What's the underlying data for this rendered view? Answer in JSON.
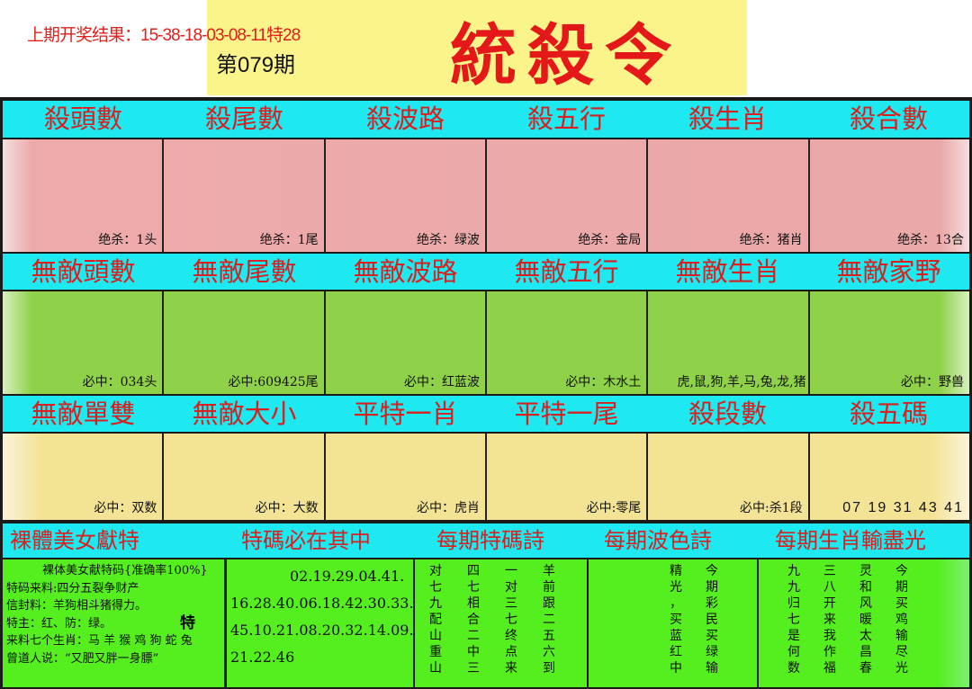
{
  "header": {
    "last_result": "上期开奖结果：15-38-18-03-08-11特28",
    "issue": "第079期",
    "title": "統殺令"
  },
  "colors": {
    "header_band": "#1ee8f0",
    "header_text": "#d82020",
    "kill_band": "#eeaaaa",
    "sure_band": "#8fd24a",
    "single_band": "#f3e394",
    "bottom_band": "#55ee1e",
    "title": "#e41818"
  },
  "row1": {
    "headers": [
      "殺頭數",
      "殺尾數",
      "殺波路",
      "殺五行",
      "殺生肖",
      "殺合數"
    ],
    "values": [
      "绝杀：1头",
      "绝杀：1尾",
      "绝杀：绿波",
      "绝杀：金局",
      "绝杀：猪肖",
      "绝杀：13合"
    ]
  },
  "row2": {
    "headers": [
      "無敵頭數",
      "無敵尾數",
      "無敵波路",
      "無敵五行",
      "無敵生肖",
      "無敵家野"
    ],
    "values": [
      "必中：034头",
      "必中:609425尾",
      "必中：红蓝波",
      "必中：木水土",
      "虎,鼠,狗,羊,马,兔,龙,猪",
      "必中：野兽"
    ]
  },
  "row3": {
    "headers": [
      "無敵單雙",
      "無敵大小",
      "平特一肖",
      "平特一尾",
      "殺段數",
      "殺五碼"
    ],
    "values": [
      "必中：双数",
      "必中：大数",
      "必中：虎肖",
      "必中:零尾",
      "必中:杀1段",
      "07 19 31 43 41"
    ]
  },
  "row4": {
    "headers": [
      "裸體美女獻特",
      "特碼必在其中",
      "每期特碼詩",
      "每期波色詩",
      "每期生肖輸盡光"
    ]
  },
  "bottom": {
    "info_lines": [
      "裸体美女献特码{准确率100%}",
      "特码来料:四分五裂争财产",
      "信封料：羊狗相斗猪得力。",
      "特主：红、防：绿。",
      "来料七个生肖：马 羊 猴 鸡 狗 蛇 兔",
      "曾道人说：“又肥又胖一身膘”"
    ],
    "te_char": "特",
    "numbers": [
      "02.19.29.04.41.",
      "16.28.40.06.18.42.30.33.",
      "45.10.21.08.20.32.14.09.",
      "21.22.46"
    ],
    "poem_te": [
      "对",
      "四",
      "一",
      "羊",
      "七",
      "七",
      "对",
      "前",
      "九",
      "相",
      "三",
      "跟",
      "配",
      "合",
      "七",
      "二",
      "山",
      "二",
      "终",
      "五",
      "重",
      "中",
      "点",
      "六",
      "山",
      "三",
      "来",
      "到"
    ],
    "poem_color": [
      "精",
      "今",
      "光",
      "期",
      "，",
      "彩",
      "买",
      "民",
      "蓝",
      "买",
      "红",
      "绿",
      "中",
      "输"
    ],
    "poem_zodiac": [
      "九",
      "三",
      "灵",
      "今",
      "九",
      "八",
      "和",
      "期",
      "归",
      "开",
      "风",
      "买",
      "七",
      "来",
      "暖",
      "鸡",
      "是",
      "我",
      "太",
      "输",
      "何",
      "作",
      "昌",
      "尽",
      "数",
      "福",
      "春",
      "光"
    ]
  }
}
